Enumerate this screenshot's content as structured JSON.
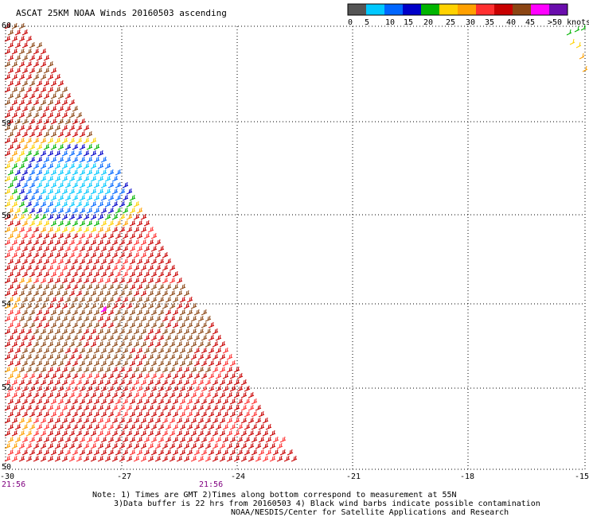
{
  "title": "ASCAT 25KM NOAA Winds 20160503 ascending",
  "colorbar": {
    "labels": [
      "0",
      "5",
      "10",
      "15",
      "20",
      "25",
      "30",
      "35",
      "40",
      "45",
      ">50 knots"
    ],
    "colors": [
      "#555555",
      "#00c8ff",
      "#0066ff",
      "#0000c8",
      "#00b400",
      "#ffd200",
      "#ffa000",
      "#ff3030",
      "#c80000",
      "#8b4513",
      "#ff00ff",
      "#6a0dad"
    ]
  },
  "map": {
    "lon_labels": [
      "-30",
      "-27",
      "-24",
      "-21",
      "-18",
      "-15"
    ],
    "lat_labels": [
      "60",
      "58",
      "56",
      "54",
      "52",
      "50"
    ],
    "times": [
      "21:56",
      "21:56"
    ]
  },
  "notes": [
    "Note: 1) Times are GMT 2)Times along bottom correspond to measurement at 55N",
    "3)Data buffer is 22 hrs from 20160503 4) Black wind barbs indicate possible contamination",
    "NOAA/NESDIS/Center for Satellite Applications and Research"
  ]
}
